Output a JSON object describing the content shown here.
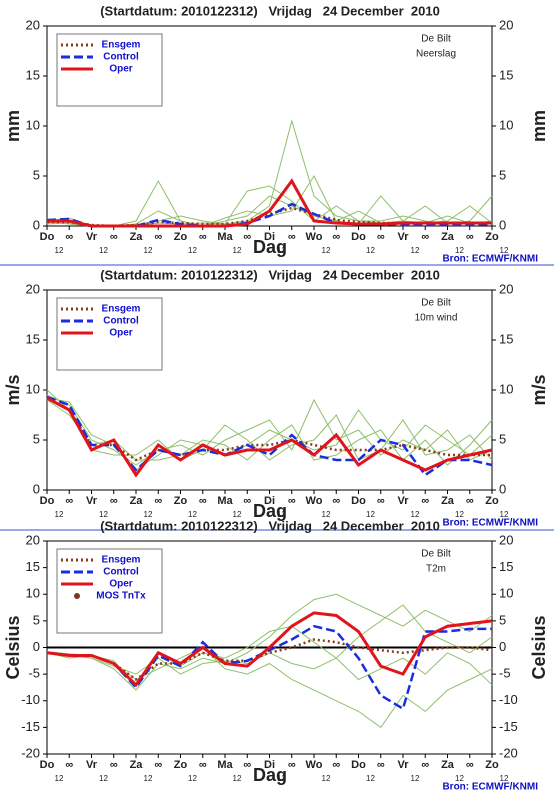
{
  "chart_data": [
    {
      "type": "line",
      "title": "(Startdatum: 2010122312)   Vrijdag   24 December  2010",
      "annotations": [
        "De Bilt",
        "Neerslag"
      ],
      "ylabel": "mm",
      "xlabel": "Dag",
      "source": "Bron: ECMWF/KNMI",
      "categories": [
        "Do",
        "∞",
        "Vr",
        "∞",
        "Za",
        "∞",
        "Zo",
        "∞",
        "Ma",
        "∞",
        "Di",
        "∞",
        "Wo",
        "∞",
        "Do",
        "∞",
        "Vr",
        "∞",
        "Za",
        "∞",
        "Zo"
      ],
      "sublabels": [
        "12",
        null,
        "12",
        null,
        "12",
        null,
        "12",
        null,
        "12",
        null,
        "12",
        null,
        "12",
        null,
        "12",
        null,
        "12",
        null,
        "12",
        null,
        "12"
      ],
      "ylim": [
        0,
        20
      ],
      "yticks": [
        0,
        5,
        10,
        15,
        20
      ],
      "zero_line": false,
      "member_color": "#8fbf6a",
      "members": [
        [
          0.3,
          0.5,
          0,
          0,
          0.2,
          1.5,
          0.5,
          0,
          0.5,
          1,
          3,
          2,
          1,
          0.5,
          1.5,
          0.3,
          0.5,
          2,
          0.3,
          0.2,
          0.5
        ],
        [
          0.5,
          0.8,
          0,
          0,
          0,
          0.3,
          0.2,
          0.3,
          0.2,
          0.5,
          2,
          10.5,
          3,
          1,
          0.5,
          0.3,
          0.2,
          0.3,
          1,
          0.3,
          0.2
        ],
        [
          0.2,
          0.3,
          0.1,
          0,
          0.5,
          4.5,
          0.5,
          0,
          0.8,
          1.5,
          1,
          1.5,
          5,
          0.5,
          0.2,
          3,
          0.5,
          0.3,
          0.5,
          2,
          0.3
        ],
        [
          0.4,
          0.2,
          0,
          0.1,
          0,
          0.5,
          1,
          0.5,
          0.2,
          3.5,
          4,
          2.5,
          0.5,
          2,
          0.5,
          0.5,
          1,
          0.5,
          0.2,
          0.5,
          3
        ]
      ],
      "series": [
        {
          "name": "Ensgem",
          "color": "#8b3a1a",
          "style": "dotted",
          "values": [
            0.4,
            0.4,
            0.1,
            0,
            0.1,
            0.4,
            0.3,
            0.2,
            0.2,
            0.5,
            1.2,
            1.8,
            1.2,
            0.6,
            0.4,
            0.3,
            0.3,
            0.3,
            0.3,
            0.3,
            0.3
          ]
        },
        {
          "name": "Control",
          "color": "#1a2ee0",
          "style": "dashed",
          "values": [
            0.6,
            0.7,
            0,
            0,
            0,
            0.6,
            0.2,
            0,
            0,
            0.3,
            1,
            2.2,
            1.2,
            0.3,
            0.2,
            0.2,
            0.1,
            0.1,
            0.1,
            0.1,
            0.2
          ]
        },
        {
          "name": "Oper",
          "color": "#e0141a",
          "style": "solid",
          "values": [
            0.5,
            0.5,
            0,
            0,
            0,
            0,
            0,
            0,
            0,
            0.2,
            1.5,
            4.5,
            0.5,
            0.3,
            0.2,
            0.2,
            0.3,
            0.3,
            0.3,
            0.3,
            0.3
          ]
        }
      ]
    },
    {
      "type": "line",
      "title": "(Startdatum: 2010122312)   Vrijdag   24 December  2010",
      "annotations": [
        "De Bilt",
        "10m wind"
      ],
      "ylabel": "m/s",
      "xlabel": "Dag",
      "source": "Bron: ECMWF/KNMI",
      "categories": [
        "Do",
        "∞",
        "Vr",
        "∞",
        "Za",
        "∞",
        "Zo",
        "∞",
        "Ma",
        "∞",
        "Di",
        "∞",
        "Wo",
        "∞",
        "Do",
        "∞",
        "Vr",
        "∞",
        "Za",
        "∞",
        "Zo"
      ],
      "sublabels": [
        "12",
        null,
        "12",
        null,
        "12",
        null,
        "12",
        null,
        "12",
        null,
        "12",
        null,
        "12",
        null,
        "12",
        null,
        "12",
        null,
        "12",
        null,
        "12"
      ],
      "ylim": [
        0,
        20
      ],
      "yticks": [
        0,
        5,
        10,
        15,
        20
      ],
      "zero_line": false,
      "member_color": "#8fbf6a",
      "members": [
        [
          9.5,
          8.5,
          5,
          4,
          2.5,
          4,
          4.5,
          3.5,
          5,
          6,
          7,
          4,
          9,
          5,
          6,
          3.5,
          5,
          4,
          6,
          3,
          4
        ],
        [
          9,
          7.5,
          4.5,
          5,
          3,
          3,
          3.5,
          5,
          4.5,
          3,
          5,
          6.5,
          3,
          3.5,
          5,
          6,
          3,
          5,
          2.5,
          4.5,
          7
        ],
        [
          10,
          8,
          4,
          3.5,
          3.5,
          5,
          3,
          4,
          6.5,
          5,
          3,
          4.5,
          5,
          7.5,
          3,
          4,
          7,
          3.5,
          4,
          5.5,
          3
        ],
        [
          9.2,
          8.8,
          5.5,
          4.5,
          2,
          3.5,
          5,
          4.5,
          3.5,
          4.5,
          6,
          5,
          4,
          4.5,
          8,
          5,
          4,
          6.5,
          5,
          3.5,
          5.5
        ]
      ],
      "series": [
        {
          "name": "Ensgem",
          "color": "#8b3a1a",
          "style": "dotted",
          "values": [
            9.2,
            8,
            4.5,
            4.5,
            3,
            4,
            3.5,
            4,
            4,
            4.5,
            4.5,
            5,
            4.5,
            4,
            4,
            4,
            4.5,
            4,
            3.5,
            3.5,
            3.5
          ]
        },
        {
          "name": "Control",
          "color": "#1a2ee0",
          "style": "dashed",
          "values": [
            9.3,
            8.5,
            4.5,
            4.5,
            2,
            4,
            3.5,
            4,
            3.5,
            4.5,
            3.5,
            5.5,
            3.5,
            3,
            3,
            5,
            4.5,
            1.5,
            3,
            3,
            2.5
          ]
        },
        {
          "name": "Oper",
          "color": "#e0141a",
          "style": "solid",
          "values": [
            9.2,
            8,
            4,
            5,
            1.5,
            4.5,
            3,
            4.5,
            3.5,
            4,
            4,
            5,
            3.5,
            5.5,
            2.5,
            4,
            3,
            2,
            3,
            3.5,
            4
          ]
        }
      ]
    },
    {
      "type": "line",
      "title": "(Startdatum: 2010122312)   Vrijdag   24 December  2010",
      "annotations": [
        "De Bilt",
        "T2m"
      ],
      "ylabel": "Celsius",
      "xlabel": "Dag",
      "source": "Bron: ECMWF/KNMI",
      "categories": [
        "Do",
        "∞",
        "Vr",
        "∞",
        "Za",
        "∞",
        "Zo",
        "∞",
        "Ma",
        "∞",
        "Di",
        "∞",
        "Wo",
        "∞",
        "Do",
        "∞",
        "Vr",
        "∞",
        "Za",
        "∞",
        "Zo"
      ],
      "sublabels": [
        "12",
        null,
        "12",
        null,
        "12",
        null,
        "12",
        null,
        "12",
        null,
        "12",
        null,
        "12",
        null,
        "12",
        null,
        "12",
        null,
        "12",
        null,
        "12"
      ],
      "ylim": [
        -20,
        20
      ],
      "yticks": [
        -20,
        -15,
        -10,
        -5,
        0,
        5,
        10,
        15,
        20
      ],
      "zero_line": true,
      "member_color": "#8fbf6a",
      "members": [
        [
          -1,
          -1.5,
          -2,
          -4,
          -8,
          -3,
          -4,
          -2,
          -3,
          -1,
          2,
          6,
          9,
          10,
          8,
          6,
          4,
          7,
          5,
          3,
          6
        ],
        [
          -1,
          -2,
          -1.5,
          -3,
          -6,
          -4,
          -2,
          0,
          -4,
          -5,
          -3,
          -6,
          -8,
          -10,
          -12,
          -15,
          -9,
          -12,
          -8,
          -6,
          -4
        ],
        [
          -0.8,
          -1.2,
          -1.5,
          -2.5,
          -7,
          -1,
          -3.5,
          -1,
          -2,
          0,
          3,
          4,
          1,
          -2,
          2,
          5,
          8,
          3,
          1,
          -1,
          2
        ],
        [
          -1,
          -1.5,
          -2,
          -3.5,
          -5,
          -2,
          -5,
          -3,
          -2.5,
          -3,
          -1,
          -3,
          -4,
          -2,
          -6,
          -4,
          -2,
          -5,
          -1,
          -3,
          -7
        ]
      ],
      "series": [
        {
          "name": "Ensgem",
          "color": "#8b3a1a",
          "style": "dotted",
          "values": [
            -1,
            -1.5,
            -1.5,
            -3,
            -6,
            -3,
            -3,
            -1,
            -2.5,
            -2.5,
            -1,
            0,
            1.5,
            1,
            0,
            -0.5,
            -1,
            -0.5,
            0,
            0,
            -0.5
          ]
        },
        {
          "name": "Control",
          "color": "#1a2ee0",
          "style": "dashed",
          "values": [
            -1,
            -1.5,
            -1.5,
            -3,
            -7.5,
            -1.5,
            -3.5,
            1,
            -3,
            -2.5,
            -0.5,
            1.5,
            4,
            3,
            -2,
            -9,
            -11.5,
            3,
            3,
            3.5,
            3.5
          ]
        },
        {
          "name": "Oper",
          "color": "#e0141a",
          "style": "solid",
          "values": [
            -1,
            -1.5,
            -1.5,
            -3,
            -7,
            -1,
            -3,
            0,
            -3,
            -3.5,
            0,
            4,
            6.5,
            6,
            3,
            -3.5,
            -5,
            2,
            4,
            4.5,
            5
          ]
        },
        {
          "name": "MOS TnTx",
          "color": "#7a3a1a",
          "style": "dots",
          "values": [
            null,
            null,
            null,
            null,
            null,
            null,
            null,
            null,
            null,
            null,
            null,
            null,
            null,
            null,
            null,
            null,
            null,
            null,
            null,
            null,
            null
          ]
        }
      ]
    }
  ]
}
